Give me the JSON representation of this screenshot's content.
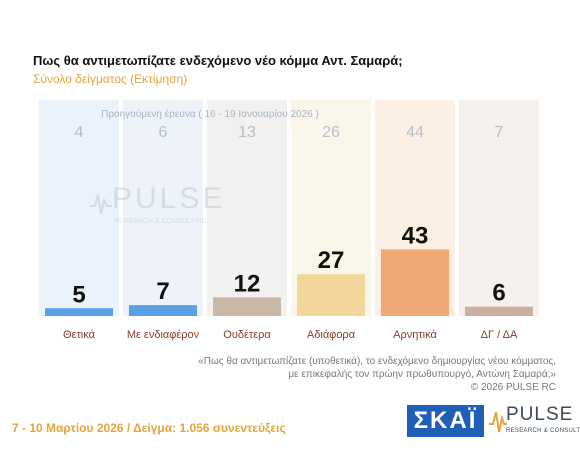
{
  "chart_data": {
    "type": "bar",
    "title": "Πως θα αντιμετωπίζατε ενδεχόμενο νέο κόμμα Αντ. Σαμαρά;",
    "subtitle": "Σύνολο δείγματος  (Εκτίμηση)",
    "previous_label": "Προηγούμενη έρευνα ( 16 - 19 Ιανουαρίου 2026 )",
    "categories": [
      "Θετικά",
      "Με ενδιαφέρον",
      "Ουδέτερα",
      "Αδιάφορα",
      "Αρνητικά",
      "ΔΓ / ΔΑ"
    ],
    "values": [
      5,
      7,
      12,
      27,
      43,
      6
    ],
    "previous_values": [
      4,
      6,
      13,
      26,
      44,
      7
    ],
    "ylim": [
      0,
      100
    ],
    "grid": false,
    "colors": [
      "#5aa0e8",
      "#5aa0e8",
      "#c9b8a8",
      "#f3d79a",
      "#f2a874",
      "#c9b0a0"
    ],
    "column_tints": [
      "#eaf2fb",
      "#eef3f9",
      "#f3f1ef",
      "#fbf6ea",
      "#fcefe4",
      "#f5f1ee"
    ]
  },
  "note": {
    "line1": "«Πως θα αντιμετωπίζατε (υποθετικά), το ενδεχόμενο δημιουργίας νέου κόμματος,",
    "line2": "με επικεφαλής τον πρώην πρωθυπουργό, Αντώνη Σαμαρά;»",
    "line3": "©  2026  PULSE RC"
  },
  "footer": "7 - 10  Μαρτίου 2026  /  Δείγμα:  1.056 συνεντεύξεις",
  "logos": {
    "skai": "ΣΚΑΪ",
    "pulse": "PULSE",
    "pulse_tag": "RESEARCH & CONSULTING"
  }
}
